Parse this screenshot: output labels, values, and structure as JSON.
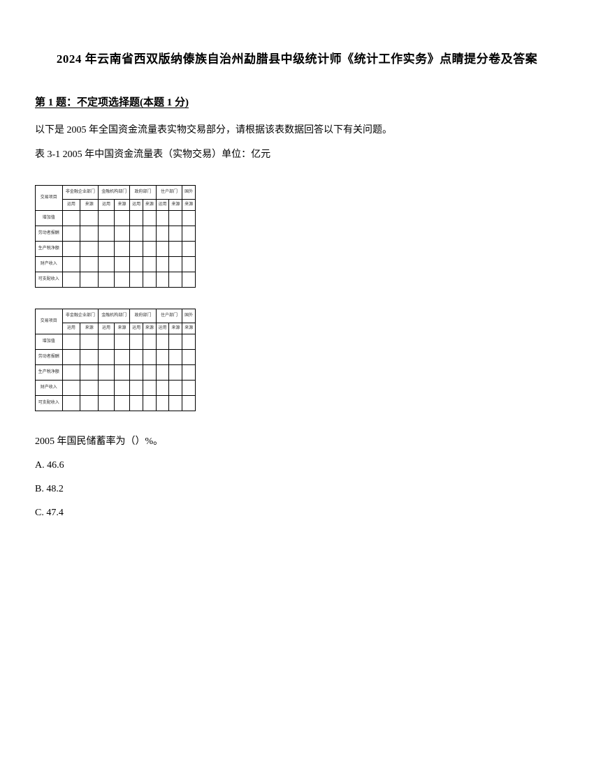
{
  "title": "2024 年云南省西双版纳傣族自治州勐腊县中级统计师《统计工作实务》点睛提分卷及答案",
  "question_header": "第 1 题：不定项选择题(本题 1 分)",
  "intro_text": "以下是 2005 年全国资金流量表实物交易部分，请根据该表数据回答以下有关问题。",
  "table_caption": "表 3-1 2005 年中国资金流量表（实物交易）单位：亿元",
  "table": {
    "header_groups": [
      {
        "label": "非金融企业部门",
        "colspan": 2
      },
      {
        "label": "金融机构部门",
        "colspan": 2
      },
      {
        "label": "政府部门",
        "colspan": 2
      },
      {
        "label": "住户部门",
        "colspan": 2
      },
      {
        "label": "国外",
        "colspan": 1
      }
    ],
    "first_col_header": "交易项目",
    "subheaders": [
      "运用",
      "来源",
      "运用",
      "来源",
      "运用",
      "来源",
      "运用",
      "来源",
      "来源"
    ],
    "rows": [
      {
        "label": "增加值",
        "cells": [
          "",
          "",
          "",
          "",
          "",
          "",
          "",
          "",
          ""
        ]
      },
      {
        "label": "劳动者报酬",
        "cells": [
          "",
          "",
          "",
          "",
          "",
          "",
          "",
          "",
          ""
        ]
      },
      {
        "label": "生产税净额",
        "cells": [
          "",
          "",
          "",
          "",
          "",
          "",
          "",
          "",
          ""
        ]
      },
      {
        "label": "财产收入",
        "cells": [
          "",
          "",
          "",
          "",
          "",
          "",
          "",
          "",
          ""
        ]
      },
      {
        "label": "可支配收入",
        "cells": [
          "",
          "",
          "",
          "",
          "",
          "",
          "",
          "",
          ""
        ]
      }
    ],
    "border_color": "#000000",
    "background_color": "#ffffff",
    "font_size": 6
  },
  "question_prompt": "2005 年国民储蓄率为（）%。",
  "options": [
    {
      "key": "A",
      "text": "46.6"
    },
    {
      "key": "B",
      "text": "48.2"
    },
    {
      "key": "C",
      "text": "47.4"
    }
  ]
}
